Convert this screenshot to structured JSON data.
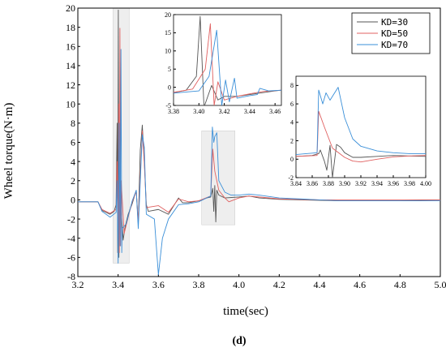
{
  "panel_label": "(d)",
  "chart_data": [
    {
      "id": "main",
      "type": "line",
      "title": "",
      "xlabel": "time(sec)",
      "ylabel": "Wheel torque(N·m)",
      "xlim": [
        3.2,
        5.0
      ],
      "ylim": [
        -8,
        20
      ],
      "xticks": [
        "3.2",
        "3.4",
        "3.6",
        "3.8",
        "4.0",
        "4.2",
        "4.4",
        "4.6",
        "4.8",
        "5.0"
      ],
      "yticks": [
        "-8",
        "-6",
        "-4",
        "-2",
        "0",
        "2",
        "4",
        "6",
        "8",
        "10",
        "12",
        "14",
        "16",
        "18",
        "20"
      ],
      "legend_position": "top-right",
      "highlighted_regions": [
        {
          "x": [
            3.375,
            3.455
          ],
          "y": [
            -6.6,
            20
          ]
        },
        {
          "x": [
            3.815,
            3.98
          ],
          "y": [
            -2.6,
            7.2
          ]
        }
      ],
      "series": [
        {
          "name": "KD=30",
          "color": "#555555",
          "points": [
            [
              3.2,
              -0.2
            ],
            [
              3.3,
              -0.2
            ],
            [
              3.32,
              -1.1
            ],
            [
              3.36,
              -1.5
            ],
            [
              3.38,
              -1.2
            ],
            [
              3.39,
              -0.5
            ],
            [
              3.395,
              8
            ],
            [
              3.398,
              -5.5
            ],
            [
              3.401,
              19.8
            ],
            [
              3.404,
              -6
            ],
            [
              3.407,
              5.5
            ],
            [
              3.41,
              -2
            ],
            [
              3.415,
              -1
            ],
            [
              3.425,
              -4.2
            ],
            [
              3.435,
              -2.8
            ],
            [
              3.45,
              -1.5
            ],
            [
              3.47,
              -0.4
            ],
            [
              3.49,
              1
            ],
            [
              3.5,
              -2.5
            ],
            [
              3.51,
              5.2
            ],
            [
              3.52,
              7.8
            ],
            [
              3.53,
              4
            ],
            [
              3.54,
              -0.5
            ],
            [
              3.55,
              -1.2
            ],
            [
              3.6,
              -1.0
            ],
            [
              3.65,
              -1.5
            ],
            [
              3.7,
              0.2
            ],
            [
              3.72,
              -0.3
            ],
            [
              3.75,
              -0.3
            ],
            [
              3.8,
              -0.1
            ],
            [
              3.84,
              0.2
            ],
            [
              3.86,
              0.3
            ],
            [
              3.87,
              1.2
            ],
            [
              3.875,
              -1.2
            ],
            [
              3.88,
              1.5
            ],
            [
              3.885,
              -2.3
            ],
            [
              3.89,
              1.0
            ],
            [
              3.9,
              0.5
            ],
            [
              3.93,
              0.2
            ],
            [
              4.0,
              0.3
            ],
            [
              4.05,
              0.4
            ],
            [
              4.1,
              0.2
            ],
            [
              4.2,
              0.05
            ],
            [
              4.3,
              0.0
            ],
            [
              4.5,
              -0.1
            ],
            [
              4.8,
              -0.1
            ],
            [
              5.0,
              0.0
            ]
          ]
        },
        {
          "name": "KD=50",
          "color": "#e06060",
          "points": [
            [
              3.2,
              -0.2
            ],
            [
              3.3,
              -0.2
            ],
            [
              3.32,
              -1.0
            ],
            [
              3.36,
              -1.4
            ],
            [
              3.39,
              -1.0
            ],
            [
              3.395,
              4
            ],
            [
              3.4,
              -4.5
            ],
            [
              3.403,
              10
            ],
            [
              3.406,
              -5.5
            ],
            [
              3.409,
              17.9
            ],
            [
              3.412,
              -4.8
            ],
            [
              3.415,
              2
            ],
            [
              3.43,
              -3.5
            ],
            [
              3.45,
              -1.8
            ],
            [
              3.47,
              -0.2
            ],
            [
              3.49,
              0.9
            ],
            [
              3.5,
              -2.3
            ],
            [
              3.52,
              7.2
            ],
            [
              3.53,
              3.8
            ],
            [
              3.54,
              -0.8
            ],
            [
              3.6,
              -0.6
            ],
            [
              3.65,
              -1.3
            ],
            [
              3.7,
              0.1
            ],
            [
              3.75,
              -0.2
            ],
            [
              3.8,
              -0.1
            ],
            [
              3.86,
              0.4
            ],
            [
              3.87,
              5.3
            ],
            [
              3.88,
              3.0
            ],
            [
              3.9,
              1.0
            ],
            [
              3.93,
              0.2
            ],
            [
              3.95,
              -0.2
            ],
            [
              4.0,
              0.2
            ],
            [
              4.05,
              0.4
            ],
            [
              4.1,
              0.3
            ],
            [
              4.2,
              0.1
            ],
            [
              4.4,
              0.0
            ],
            [
              5.0,
              0.0
            ]
          ]
        },
        {
          "name": "KD=70",
          "color": "#3a8fd8",
          "points": [
            [
              3.2,
              -0.2
            ],
            [
              3.3,
              -0.2
            ],
            [
              3.32,
              -1.2
            ],
            [
              3.36,
              -1.8
            ],
            [
              3.39,
              -1.3
            ],
            [
              3.395,
              2
            ],
            [
              3.4,
              -6.6
            ],
            [
              3.405,
              8
            ],
            [
              3.41,
              -4.8
            ],
            [
              3.414,
              15.7
            ],
            [
              3.418,
              -5.5
            ],
            [
              3.42,
              -3
            ],
            [
              3.44,
              -2.5
            ],
            [
              3.47,
              -0.1
            ],
            [
              3.49,
              1.0
            ],
            [
              3.5,
              -3.0
            ],
            [
              3.52,
              6.8
            ],
            [
              3.53,
              5.5
            ],
            [
              3.54,
              -1.5
            ],
            [
              3.58,
              -2
            ],
            [
              3.6,
              -7.8
            ],
            [
              3.62,
              -4
            ],
            [
              3.65,
              -2
            ],
            [
              3.7,
              -0.5
            ],
            [
              3.75,
              -0.4
            ],
            [
              3.8,
              -0.2
            ],
            [
              3.86,
              0.4
            ],
            [
              3.868,
              7.6
            ],
            [
              3.875,
              6.0
            ],
            [
              3.88,
              6.6
            ],
            [
              3.89,
              7.0
            ],
            [
              3.895,
              4.5
            ],
            [
              3.9,
              2.0
            ],
            [
              3.93,
              0.8
            ],
            [
              3.96,
              0.5
            ],
            [
              4.0,
              0.5
            ],
            [
              4.05,
              0.6
            ],
            [
              4.1,
              0.5
            ],
            [
              4.2,
              0.2
            ],
            [
              4.3,
              0.1
            ],
            [
              4.5,
              -0.1
            ],
            [
              5.0,
              -0.1
            ]
          ]
        }
      ]
    },
    {
      "id": "inset1",
      "type": "line",
      "xlim": [
        3.38,
        3.465
      ],
      "ylim": [
        -5,
        20
      ],
      "xticks": [
        "3.38",
        "3.40",
        "3.42",
        "3.44",
        "3.46"
      ],
      "yticks": [
        "-5",
        "0",
        "5",
        "10",
        "15",
        "20"
      ],
      "series": [
        {
          "name": "KD=30",
          "color": "#555555",
          "points": [
            [
              3.38,
              -1.5
            ],
            [
              3.39,
              -0.8
            ],
            [
              3.398,
              3
            ],
            [
              3.401,
              19.5
            ],
            [
              3.404,
              -5.5
            ],
            [
              3.41,
              0.5
            ],
            [
              3.415,
              -3.5
            ],
            [
              3.42,
              -2.5
            ],
            [
              3.43,
              -2.5
            ],
            [
              3.44,
              -2.0
            ],
            [
              3.45,
              -1.5
            ],
            [
              3.46,
              -1.0
            ],
            [
              3.465,
              -0.8
            ]
          ]
        },
        {
          "name": "KD=50",
          "color": "#e06060",
          "points": [
            [
              3.38,
              -1.4
            ],
            [
              3.395,
              -0.5
            ],
            [
              3.405,
              5
            ],
            [
              3.409,
              17.5
            ],
            [
              3.412,
              -5
            ],
            [
              3.415,
              1.5
            ],
            [
              3.42,
              -3.5
            ],
            [
              3.43,
              -2.5
            ],
            [
              3.44,
              -1.8
            ],
            [
              3.45,
              -1.2
            ],
            [
              3.465,
              -0.8
            ]
          ]
        },
        {
          "name": "KD=70",
          "color": "#3a8fd8",
          "points": [
            [
              3.38,
              -1.6
            ],
            [
              3.4,
              -1.0
            ],
            [
              3.408,
              3
            ],
            [
              3.414,
              15.7
            ],
            [
              3.418,
              -5
            ],
            [
              3.421,
              2
            ],
            [
              3.424,
              -4
            ],
            [
              3.428,
              2.5
            ],
            [
              3.43,
              -3
            ],
            [
              3.44,
              -2.3
            ],
            [
              3.446,
              -2.0
            ],
            [
              3.448,
              -0.3
            ],
            [
              3.455,
              -1.0
            ],
            [
              3.465,
              -0.8
            ]
          ]
        }
      ]
    },
    {
      "id": "inset2",
      "type": "line",
      "xlim": [
        3.84,
        4.0
      ],
      "ylim": [
        -2,
        9
      ],
      "xticks": [
        "3.84",
        "3.86",
        "3.88",
        "3.90",
        "3.92",
        "3.94",
        "3.96",
        "3.98",
        "4.00"
      ],
      "yticks": [
        "-2",
        "0",
        "2",
        "4",
        "6",
        "8"
      ],
      "series": [
        {
          "name": "KD=30",
          "color": "#555555",
          "points": [
            [
              3.84,
              0.3
            ],
            [
              3.86,
              0.4
            ],
            [
              3.868,
              0.6
            ],
            [
              3.87,
              1.0
            ],
            [
              3.875,
              -0.2
            ],
            [
              3.878,
              -1.2
            ],
            [
              3.882,
              1.5
            ],
            [
              3.885,
              -2.0
            ],
            [
              3.89,
              1.6
            ],
            [
              3.895,
              1.3
            ],
            [
              3.9,
              0.7
            ],
            [
              3.91,
              0.2
            ],
            [
              3.92,
              0.2
            ],
            [
              3.94,
              0.3
            ],
            [
              3.96,
              0.4
            ],
            [
              3.98,
              0.35
            ],
            [
              4.0,
              0.3
            ]
          ]
        },
        {
          "name": "KD=50",
          "color": "#e06060",
          "points": [
            [
              3.84,
              0.3
            ],
            [
              3.866,
              0.4
            ],
            [
              3.868,
              5.2
            ],
            [
              3.875,
              3.5
            ],
            [
              3.885,
              1.2
            ],
            [
              3.9,
              0.2
            ],
            [
              3.91,
              -0.2
            ],
            [
              3.92,
              -0.3
            ],
            [
              3.94,
              0.0
            ],
            [
              3.96,
              0.25
            ],
            [
              3.98,
              0.35
            ],
            [
              4.0,
              0.4
            ]
          ]
        },
        {
          "name": "KD=70",
          "color": "#3a8fd8",
          "points": [
            [
              3.84,
              0.5
            ],
            [
              3.866,
              0.7
            ],
            [
              3.868,
              7.5
            ],
            [
              3.873,
              6.0
            ],
            [
              3.877,
              7.2
            ],
            [
              3.882,
              6.4
            ],
            [
              3.892,
              7.8
            ],
            [
              3.9,
              4.5
            ],
            [
              3.91,
              2.2
            ],
            [
              3.92,
              1.4
            ],
            [
              3.94,
              0.9
            ],
            [
              3.96,
              0.7
            ],
            [
              3.98,
              0.6
            ],
            [
              4.0,
              0.6
            ]
          ]
        }
      ]
    }
  ]
}
